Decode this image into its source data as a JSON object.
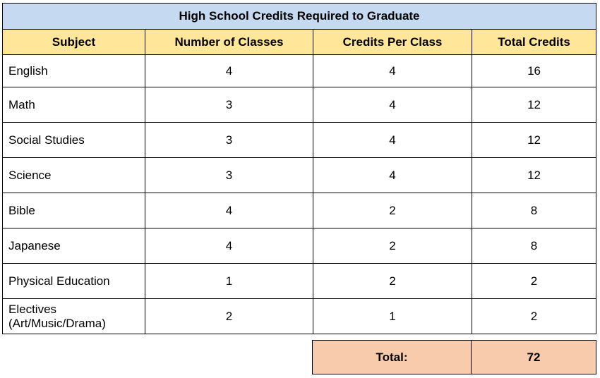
{
  "title": "High School Credits Required to Graduate",
  "headers": {
    "subject": "Subject",
    "num_classes": "Number of Classes",
    "credits_per_class": "Credits Per Class",
    "total_credits": "Total Credits"
  },
  "rows": [
    {
      "subject": "English",
      "num_classes": "4",
      "credits_per_class": "4",
      "total_credits": "16"
    },
    {
      "subject": "Math",
      "num_classes": "3",
      "credits_per_class": "4",
      "total_credits": "12"
    },
    {
      "subject": "Social Studies",
      "num_classes": "3",
      "credits_per_class": "4",
      "total_credits": "12"
    },
    {
      "subject": "Science",
      "num_classes": "3",
      "credits_per_class": "4",
      "total_credits": "12"
    },
    {
      "subject": "Bible",
      "num_classes": "4",
      "credits_per_class": "2",
      "total_credits": "8"
    },
    {
      "subject": "Japanese",
      "num_classes": "4",
      "credits_per_class": "2",
      "total_credits": "8"
    },
    {
      "subject": "Physical Education",
      "num_classes": "1",
      "credits_per_class": "2",
      "total_credits": "2"
    },
    {
      "subject": "Electives (Art/Music/Drama)",
      "subject_line1": "Electives",
      "subject_line2": "(Art/Music/Drama)",
      "num_classes": "2",
      "credits_per_class": "1",
      "total_credits": "2"
    }
  ],
  "total": {
    "label": "Total:",
    "value": "72"
  },
  "colors": {
    "title_bg": "#c5d9f1",
    "header_bg": "#ffe699",
    "total_bg": "#f8cbad"
  }
}
